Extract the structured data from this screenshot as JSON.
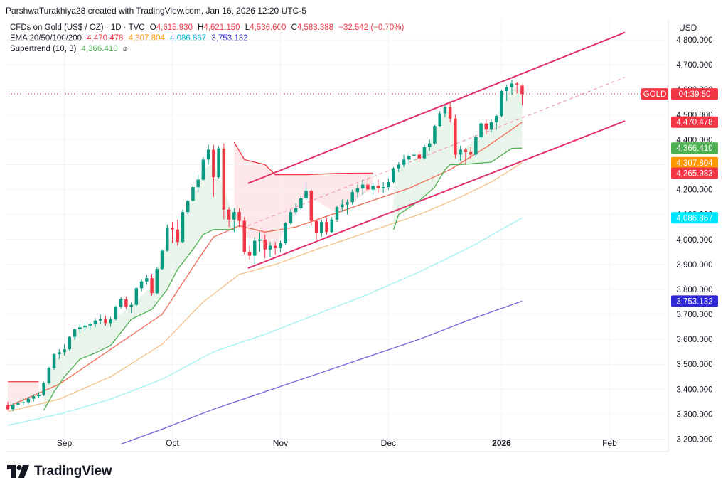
{
  "header": {
    "text": "ParshwaTurakhiya28 created with TradingView.com, Jan 16, 2026 12:20 UTC-5"
  },
  "legend": {
    "symbol": "CFDs on Gold (US$ / OZ) · 1D · TVC",
    "open_label": "O",
    "open": "4,615.930",
    "high_label": "H",
    "high": "4,621.150",
    "low_label": "L",
    "low": "4,536.600",
    "close_label": "C",
    "close": "4,583.388",
    "change": "−32.542 (−0.70%)",
    "ema_label": "EMA 20/50/100/200",
    "ema20": "4,470.478",
    "ema50": "4,307.804",
    "ema100": "4,086.867",
    "ema200": "3,753.132",
    "supertrend_label": "Supertrend (10, 3)",
    "supertrend": "4,366.410",
    "hidden_icon": "eye-off-icon"
  },
  "axis": {
    "currency": "USD"
  },
  "brand": {
    "name": "TradingView",
    "logo_icon": "tradingview-logo-icon"
  },
  "price_tags": [
    {
      "label": "GOLD",
      "value": "04:39:50",
      "color": "#f23645",
      "price": 4583.388
    },
    {
      "label": "",
      "value": "4,470.478",
      "color": "#f23645",
      "price": 4470.478
    },
    {
      "label": "",
      "value": "4,366.410",
      "color": "#4caf50",
      "price": 4366.41
    },
    {
      "label": "",
      "value": "4,307.804",
      "color": "#ff9800",
      "price": 4307.804
    },
    {
      "label": "",
      "value": "4,265.983",
      "color": "#f23645",
      "price": 4265.983
    },
    {
      "label": "",
      "value": "4,086.867",
      "color": "#00e5ff",
      "price": 4086.867
    },
    {
      "label": "",
      "value": "3,753.132",
      "color": "#2f28d6",
      "price": 3753.132
    }
  ],
  "colors": {
    "up": "#089981",
    "down": "#f23645",
    "ema20": "#f0705b",
    "ema50": "#f5c48e",
    "ema100": "#a6f2f2",
    "ema200": "#7b68d9",
    "supertrend": "#4caf50",
    "channel": "#e0316a"
  },
  "chart_data": {
    "type": "candlestick",
    "title": "CFDs on Gold (US$ / OZ) · 1D · TVC",
    "ylabel": "USD",
    "ylim": [
      3150,
      4880
    ],
    "y_ticks": [
      "3,200.000",
      "3,300.000",
      "3,400.000",
      "3,500.000",
      "3,600.000",
      "3,700.000",
      "3,800.000",
      "3,900.000",
      "4,000.000",
      "4,100.000",
      "4,200.000",
      "4,300.000",
      "4,400.000",
      "4,500.000",
      "4,600.000",
      "4,700.000",
      "4,800.000"
    ],
    "x_ticks": [
      {
        "label": "Sep",
        "index": 11,
        "bold": false
      },
      {
        "label": "Oct",
        "index": 32,
        "bold": false
      },
      {
        "label": "Nov",
        "index": 53,
        "bold": false
      },
      {
        "label": "Dec",
        "index": 74,
        "bold": false
      },
      {
        "label": "2026",
        "index": 96,
        "bold": true
      },
      {
        "label": "Feb",
        "index": 117,
        "bold": false
      }
    ],
    "x_range": [
      0,
      128
    ],
    "candles": [
      [
        3335,
        3350,
        3315,
        3320
      ],
      [
        3320,
        3345,
        3312,
        3338
      ],
      [
        3338,
        3352,
        3325,
        3344
      ],
      [
        3344,
        3365,
        3335,
        3348
      ],
      [
        3348,
        3370,
        3340,
        3362
      ],
      [
        3362,
        3380,
        3350,
        3372
      ],
      [
        3372,
        3390,
        3365,
        3378
      ],
      [
        3378,
        3430,
        3372,
        3425
      ],
      [
        3425,
        3490,
        3420,
        3485
      ],
      [
        3485,
        3545,
        3478,
        3540
      ],
      [
        3540,
        3560,
        3520,
        3548
      ],
      [
        3548,
        3580,
        3535,
        3560
      ],
      [
        3560,
        3615,
        3552,
        3610
      ],
      [
        3610,
        3645,
        3598,
        3640
      ],
      [
        3640,
        3660,
        3625,
        3648
      ],
      [
        3648,
        3665,
        3630,
        3655
      ],
      [
        3655,
        3668,
        3638,
        3660
      ],
      [
        3660,
        3685,
        3648,
        3675
      ],
      [
        3675,
        3700,
        3660,
        3682
      ],
      [
        3682,
        3695,
        3655,
        3665
      ],
      [
        3665,
        3690,
        3650,
        3680
      ],
      [
        3680,
        3735,
        3675,
        3730
      ],
      [
        3730,
        3770,
        3722,
        3760
      ],
      [
        3760,
        3772,
        3722,
        3730
      ],
      [
        3730,
        3748,
        3705,
        3738
      ],
      [
        3738,
        3810,
        3732,
        3805
      ],
      [
        3805,
        3840,
        3792,
        3832
      ],
      [
        3832,
        3858,
        3818,
        3845
      ],
      [
        3845,
        3862,
        3775,
        3785
      ],
      [
        3785,
        3890,
        3780,
        3882
      ],
      [
        3882,
        3960,
        3878,
        3955
      ],
      [
        3955,
        4060,
        3950,
        4048
      ],
      [
        4048,
        4070,
        3985,
        4040
      ],
      [
        4040,
        4080,
        3975,
        3990
      ],
      [
        3990,
        4120,
        3985,
        4110
      ],
      [
        4110,
        4160,
        4100,
        4155
      ],
      [
        4155,
        4215,
        4150,
        4210
      ],
      [
        4210,
        4260,
        4190,
        4240
      ],
      [
        4240,
        4330,
        4235,
        4320
      ],
      [
        4320,
        4380,
        4300,
        4360
      ],
      [
        4360,
        4380,
        4170,
        4250
      ],
      [
        4250,
        4375,
        4245,
        4365
      ],
      [
        4365,
        4385,
        4080,
        4120
      ],
      [
        4120,
        4130,
        4050,
        4080
      ],
      [
        4080,
        4125,
        4030,
        4110
      ],
      [
        4110,
        4125,
        4050,
        4075
      ],
      [
        4075,
        4090,
        3940,
        3950
      ],
      [
        3950,
        3975,
        3920,
        3935
      ],
      [
        3935,
        4010,
        3900,
        3995
      ],
      [
        3995,
        4030,
        3950,
        4000
      ],
      [
        4000,
        4020,
        3925,
        3960
      ],
      [
        3960,
        3990,
        3930,
        3975
      ],
      [
        3975,
        3990,
        3940,
        3965
      ],
      [
        3965,
        3995,
        3950,
        3985
      ],
      [
        3985,
        4070,
        3980,
        4065
      ],
      [
        4065,
        4120,
        4060,
        4110
      ],
      [
        4110,
        4145,
        4100,
        4125
      ],
      [
        4125,
        4175,
        4118,
        4165
      ],
      [
        4165,
        4230,
        4160,
        4195
      ],
      [
        4195,
        4200,
        4055,
        4075
      ],
      [
        4075,
        4080,
        4000,
        4025
      ],
      [
        4025,
        4080,
        4010,
        4070
      ],
      [
        4070,
        4085,
        4020,
        4030
      ],
      [
        4030,
        4090,
        4025,
        4080
      ],
      [
        4080,
        4135,
        4070,
        4130
      ],
      [
        4130,
        4160,
        4110,
        4140
      ],
      [
        4140,
        4160,
        4100,
        4150
      ],
      [
        4150,
        4200,
        4140,
        4190
      ],
      [
        4190,
        4220,
        4170,
        4205
      ],
      [
        4205,
        4240,
        4180,
        4220
      ],
      [
        4220,
        4245,
        4190,
        4200
      ],
      [
        4200,
        4225,
        4180,
        4215
      ],
      [
        4215,
        4240,
        4185,
        4205
      ],
      [
        4205,
        4230,
        4185,
        4210
      ],
      [
        4210,
        4245,
        4200,
        4230
      ],
      [
        4230,
        4290,
        4225,
        4285
      ],
      [
        4285,
        4310,
        4270,
        4300
      ],
      [
        4300,
        4340,
        4290,
        4320
      ],
      [
        4320,
        4345,
        4300,
        4335
      ],
      [
        4335,
        4350,
        4315,
        4340
      ],
      [
        4340,
        4355,
        4310,
        4325
      ],
      [
        4325,
        4380,
        4320,
        4370
      ],
      [
        4370,
        4400,
        4355,
        4385
      ],
      [
        4385,
        4460,
        4380,
        4455
      ],
      [
        4455,
        4515,
        4450,
        4505
      ],
      [
        4505,
        4540,
        4490,
        4530
      ],
      [
        4530,
        4555,
        4470,
        4485
      ],
      [
        4485,
        4500,
        4325,
        4340
      ],
      [
        4340,
        4375,
        4315,
        4360
      ],
      [
        4360,
        4368,
        4300,
        4350
      ],
      [
        4350,
        4370,
        4325,
        4340
      ],
      [
        4340,
        4420,
        4330,
        4410
      ],
      [
        4410,
        4470,
        4400,
        4465
      ],
      [
        4465,
        4480,
        4420,
        4440
      ],
      [
        4440,
        4480,
        4430,
        4470
      ],
      [
        4470,
        4500,
        4440,
        4495
      ],
      [
        4495,
        4600,
        4490,
        4595
      ],
      [
        4595,
        4620,
        4555,
        4610
      ],
      [
        4610,
        4640,
        4580,
        4625
      ],
      [
        4625,
        4630,
        4585,
        4620
      ],
      [
        4616,
        4621,
        4537,
        4583
      ]
    ],
    "series": [
      {
        "name": "EMA 20",
        "color": "#f0705b",
        "points": [
          [
            0,
            3330
          ],
          [
            10,
            3420
          ],
          [
            20,
            3560
          ],
          [
            30,
            3700
          ],
          [
            37,
            3920
          ],
          [
            40,
            4010
          ],
          [
            45,
            4055
          ],
          [
            50,
            4030
          ],
          [
            56,
            4050
          ],
          [
            63,
            4100
          ],
          [
            70,
            4150
          ],
          [
            78,
            4205
          ],
          [
            86,
            4280
          ],
          [
            93,
            4370
          ],
          [
            100,
            4470
          ]
        ]
      },
      {
        "name": "EMA 50",
        "color": "#f5c48e",
        "points": [
          [
            0,
            3310
          ],
          [
            10,
            3360
          ],
          [
            20,
            3450
          ],
          [
            30,
            3580
          ],
          [
            38,
            3750
          ],
          [
            45,
            3860
          ],
          [
            52,
            3900
          ],
          [
            60,
            3960
          ],
          [
            70,
            4030
          ],
          [
            80,
            4100
          ],
          [
            88,
            4170
          ],
          [
            94,
            4230
          ],
          [
            100,
            4307.8
          ]
        ]
      },
      {
        "name": "EMA 100",
        "color": "#a6f2f2",
        "points": [
          [
            0,
            3255
          ],
          [
            10,
            3300
          ],
          [
            20,
            3360
          ],
          [
            30,
            3440
          ],
          [
            40,
            3550
          ],
          [
            50,
            3620
          ],
          [
            60,
            3700
          ],
          [
            70,
            3780
          ],
          [
            80,
            3870
          ],
          [
            90,
            3970
          ],
          [
            100,
            4086.9
          ]
        ]
      },
      {
        "name": "EMA 200",
        "color": "#7b68d9",
        "points": [
          [
            22,
            3180
          ],
          [
            30,
            3240
          ],
          [
            40,
            3320
          ],
          [
            50,
            3390
          ],
          [
            60,
            3460
          ],
          [
            70,
            3530
          ],
          [
            80,
            3600
          ],
          [
            90,
            3680
          ],
          [
            100,
            3753.1
          ]
        ]
      },
      {
        "name": "Supertrend up 1",
        "color": "#4caf50",
        "points": [
          [
            7,
            3315
          ],
          [
            9,
            3390
          ],
          [
            11,
            3450
          ],
          [
            14,
            3520
          ],
          [
            17,
            3545
          ],
          [
            20,
            3575
          ],
          [
            24,
            3680
          ],
          [
            28,
            3720
          ],
          [
            31,
            3800
          ],
          [
            33,
            3880
          ],
          [
            36,
            3960
          ],
          [
            38,
            4020
          ],
          [
            40,
            4040
          ],
          [
            44,
            4040
          ]
        ]
      },
      {
        "name": "Supertrend up 2",
        "color": "#4caf50",
        "points": [
          [
            75,
            4040
          ],
          [
            76,
            4100
          ],
          [
            80,
            4155
          ],
          [
            83,
            4210
          ],
          [
            85,
            4280
          ],
          [
            86,
            4300
          ],
          [
            88,
            4300
          ],
          [
            94,
            4310
          ],
          [
            98,
            4365
          ],
          [
            100,
            4366.4
          ]
        ]
      },
      {
        "name": "Supertrend down",
        "color": "#f23645",
        "points": [
          [
            44,
            4390
          ],
          [
            46,
            4320
          ],
          [
            50,
            4300
          ],
          [
            52,
            4260
          ],
          [
            58,
            4260
          ],
          [
            64,
            4265
          ],
          [
            71,
            4266
          ]
        ]
      },
      {
        "name": "Supertrend down early",
        "color": "#f23645",
        "points": [
          [
            0,
            3430
          ],
          [
            6,
            3430
          ]
        ]
      }
    ],
    "trendlines": [
      {
        "name": "Channel upper",
        "color": "#e0316a",
        "style": "solid",
        "from": [
          46.7,
          4225
        ],
        "to": [
          120,
          4830
        ]
      },
      {
        "name": "Channel lower",
        "color": "#e0316a",
        "style": "solid",
        "from": [
          46.7,
          3885
        ],
        "to": [
          120,
          4475
        ]
      },
      {
        "name": "Channel midline",
        "color": "#f0a0b5",
        "style": "dashed",
        "from": [
          46.7,
          4055
        ],
        "to": [
          120,
          4650
        ]
      }
    ]
  }
}
